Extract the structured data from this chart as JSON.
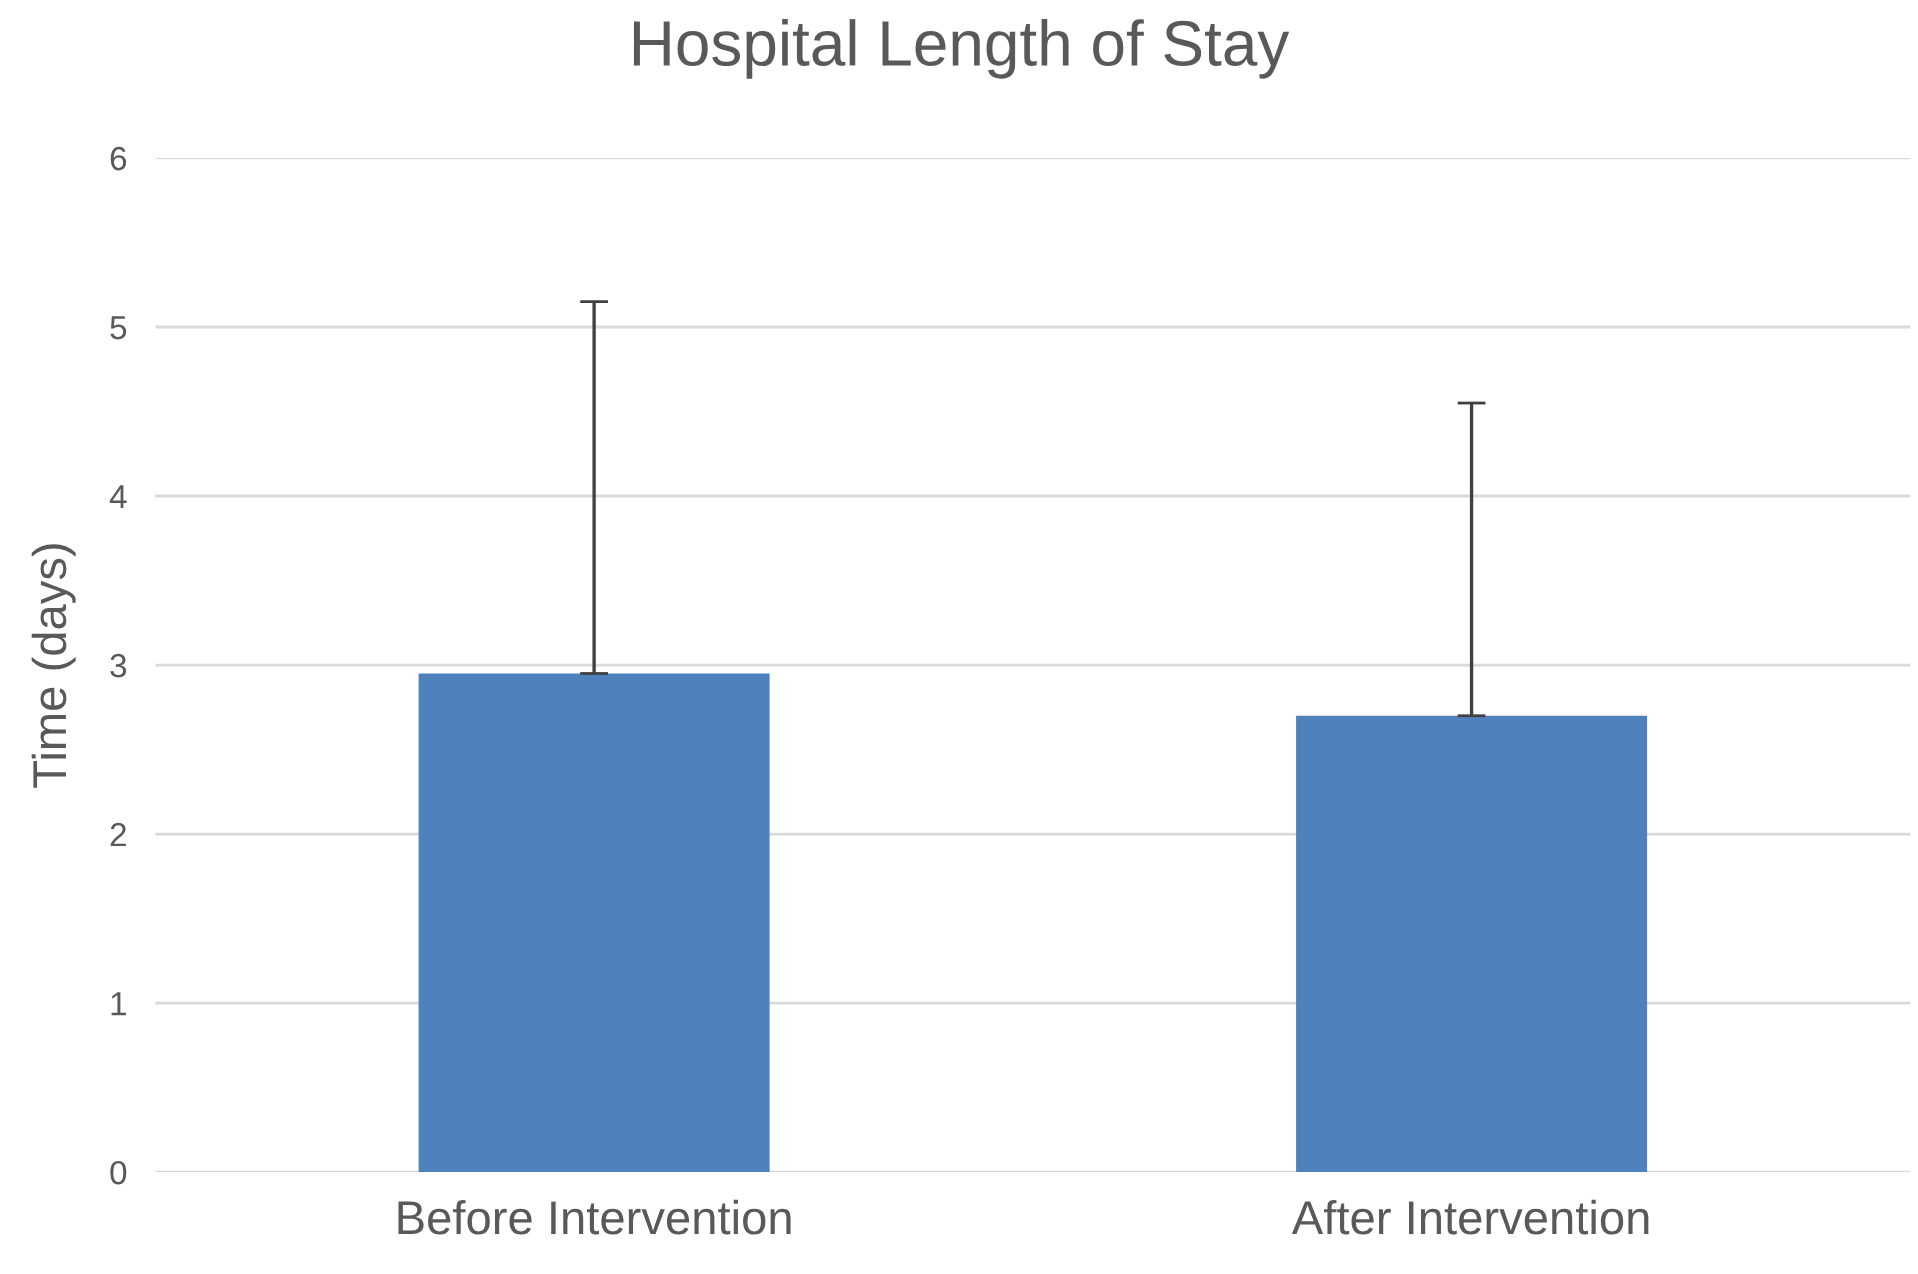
{
  "chart_data": {
    "type": "bar",
    "title": "Hospital Length of Stay",
    "ylabel": "Time (days)",
    "categories": [
      "Before Intervention",
      "After Intervention"
    ],
    "values": [
      2.95,
      2.7
    ],
    "errors": [
      [
        2.95,
        5.15
      ],
      [
        2.7,
        4.55
      ]
    ],
    "color": "#4f81bd",
    "ylim": [
      0,
      6
    ],
    "yticks": [
      0,
      1,
      2,
      3,
      4,
      5,
      6
    ],
    "grid": "y"
  }
}
